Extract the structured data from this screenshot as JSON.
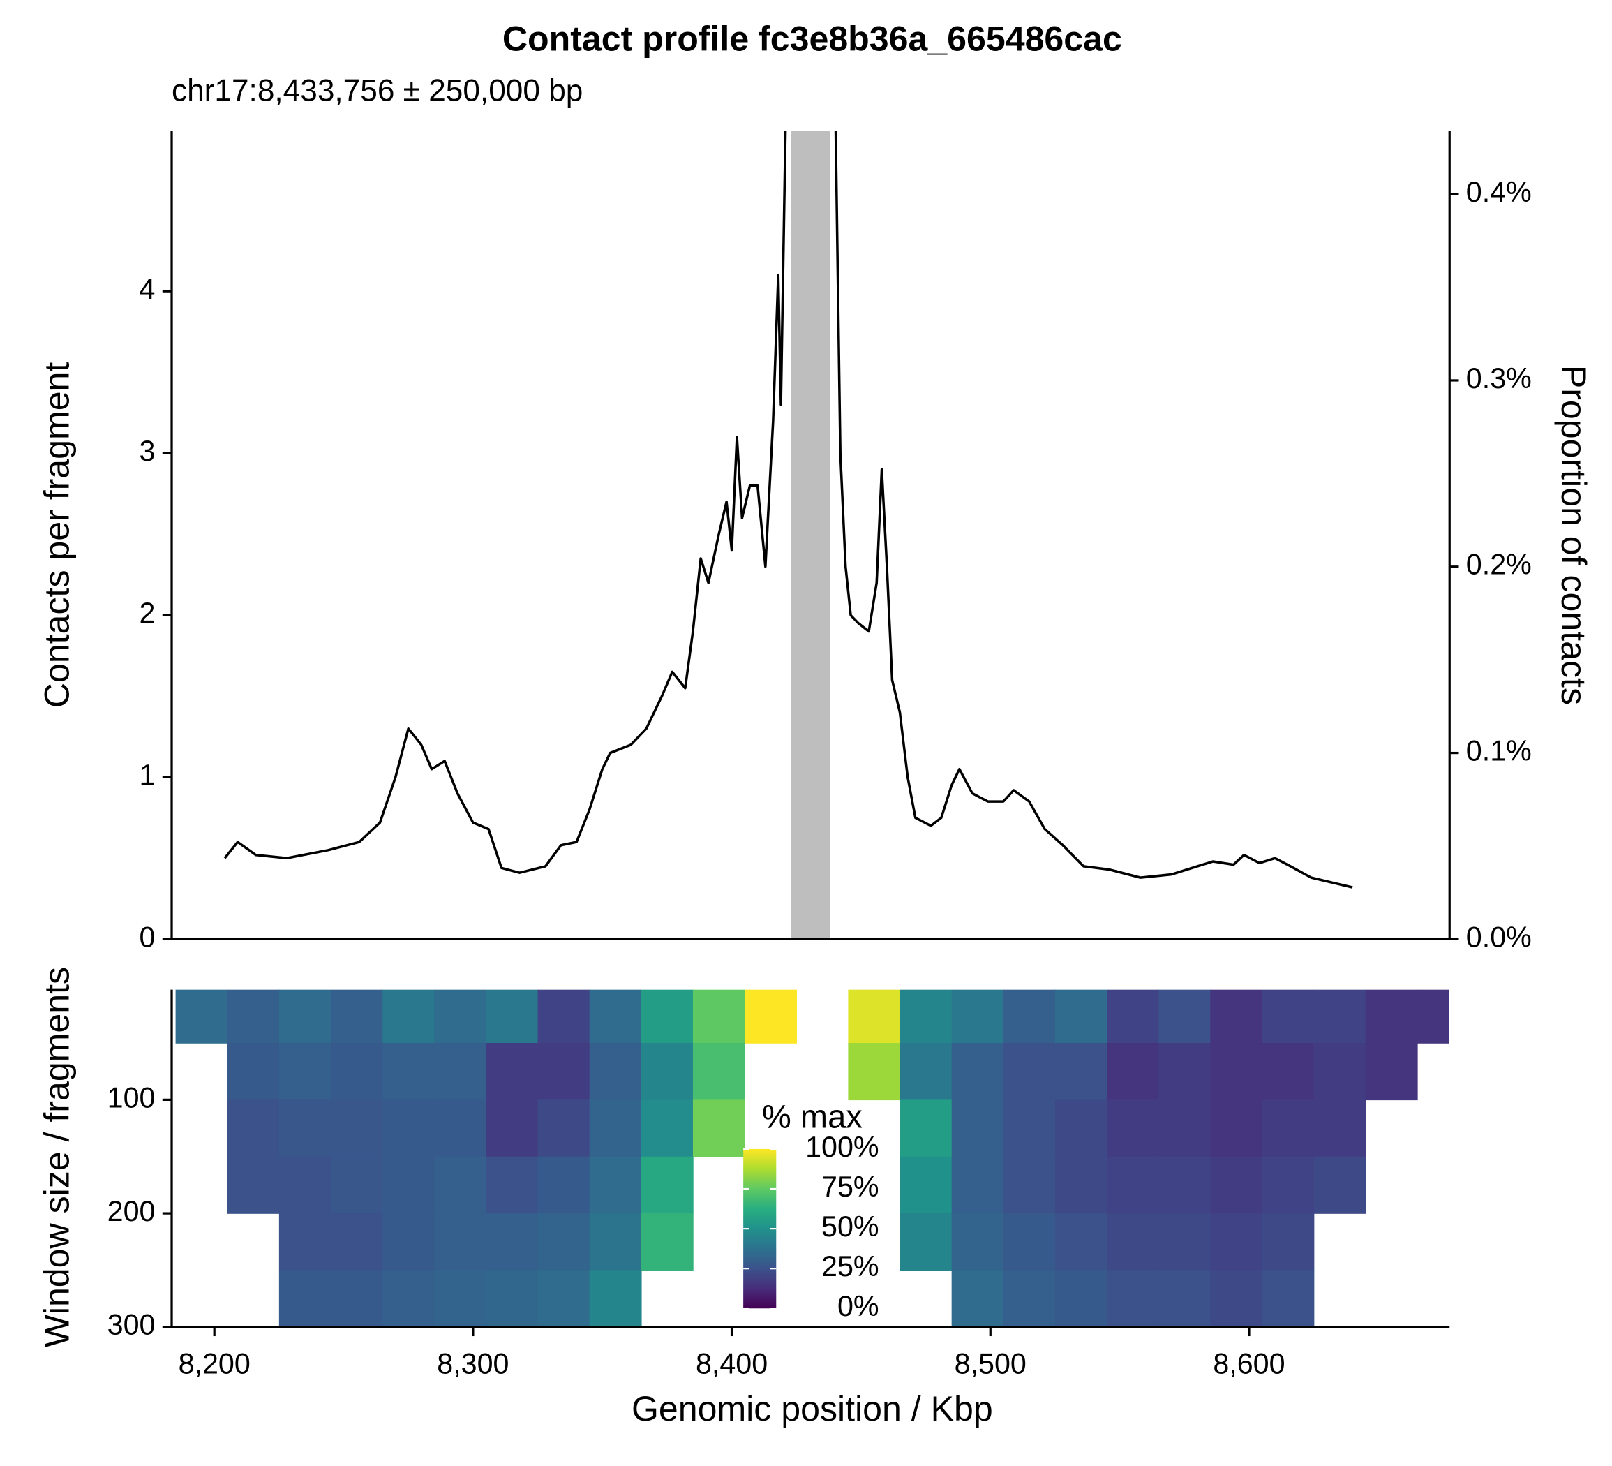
{
  "chart_data": [
    {
      "type": "line",
      "title": "Contact profile fc3e8b36a_665486cac",
      "subtitle": "chr17:8,433,756 ± 250,000 bp",
      "y_label": "Contacts per fragment",
      "y2_label": "Proportion of contacts",
      "color": "#000000",
      "highlight": [
        8423,
        8438
      ],
      "highlight_color": "#bebebe",
      "x": [
        8204,
        8209,
        8216,
        8228,
        8244,
        8256,
        8264,
        8270,
        8275,
        8280,
        8284,
        8289,
        8294,
        8300,
        8306,
        8311,
        8318,
        8328,
        8334,
        8340,
        8345,
        8350,
        8353,
        8361,
        8367,
        8373,
        8377,
        8382,
        8385,
        8388,
        8391,
        8395,
        8398,
        8400,
        8402,
        8404,
        8407,
        8410,
        8413,
        8416,
        8418,
        8419,
        8421,
        8430,
        8440,
        8442,
        8444,
        8446,
        8449,
        8453,
        8456,
        8458,
        8460,
        8462,
        8465,
        8468,
        8471,
        8477,
        8481,
        8485,
        8488,
        8493,
        8499,
        8505,
        8509,
        8515,
        8521,
        8528,
        8536,
        8546,
        8558,
        8570,
        8580,
        8586,
        8594,
        8598,
        8604,
        8610,
        8616,
        8624,
        8632,
        8640
      ],
      "values": [
        0.5,
        0.6,
        0.52,
        0.5,
        0.55,
        0.6,
        0.72,
        1.0,
        1.3,
        1.2,
        1.05,
        1.1,
        0.9,
        0.72,
        0.68,
        0.44,
        0.41,
        0.45,
        0.58,
        0.6,
        0.8,
        1.05,
        1.15,
        1.2,
        1.3,
        1.5,
        1.65,
        1.55,
        1.9,
        2.35,
        2.2,
        2.5,
        2.7,
        2.4,
        3.1,
        2.6,
        2.8,
        2.8,
        2.3,
        3.2,
        4.1,
        3.3,
        5.2,
        null,
        5.2,
        3.0,
        2.3,
        2.0,
        1.95,
        1.9,
        2.2,
        2.9,
        2.3,
        1.6,
        1.4,
        1.0,
        0.75,
        0.7,
        0.75,
        0.95,
        1.05,
        0.9,
        0.85,
        0.85,
        0.92,
        0.85,
        0.68,
        0.58,
        0.45,
        0.43,
        0.38,
        0.4,
        0.45,
        0.48,
        0.46,
        0.52,
        0.47,
        0.5,
        0.45,
        0.38,
        0.35,
        0.32
      ],
      "xlim": [
        8183.5,
        8677.5
      ],
      "ylim": [
        0,
        4.99
      ],
      "yticks": [
        0,
        1,
        2,
        3,
        4
      ],
      "y2lim": [
        0,
        0.434
      ],
      "y2ticks": [
        {
          "value": 0,
          "label": "0.0%"
        },
        {
          "value": 0.1,
          "label": "0.1%"
        },
        {
          "value": 0.2,
          "label": "0.2%"
        },
        {
          "value": 0.3,
          "label": "0.3%"
        },
        {
          "value": 0.4,
          "label": "0.4%"
        }
      ]
    },
    {
      "type": "heatmap",
      "x_label": "Genomic position / Kbp",
      "y_label": "Window size / fragments",
      "legend_title": "% max",
      "colors": [
        "#440154",
        "#472d7b",
        "#3b528b",
        "#2c728e",
        "#21918c",
        "#28ae80",
        "#5ec962",
        "#addc30",
        "#fde725"
      ],
      "legend_ticks": [
        {
          "value": 0,
          "label": "0%"
        },
        {
          "value": 25,
          "label": "25%"
        },
        {
          "value": 50,
          "label": "50%"
        },
        {
          "value": 75,
          "label": "75%"
        },
        {
          "value": 100,
          "label": "100%"
        }
      ],
      "x_bins": [
        8185,
        8205,
        8225,
        8245,
        8265,
        8285,
        8305,
        8325,
        8345,
        8365,
        8385,
        8405,
        8425,
        8445,
        8465,
        8485,
        8505,
        8525,
        8545,
        8565,
        8585,
        8605,
        8625,
        8645,
        8665,
        8677
      ],
      "y_bins": [
        3,
        50,
        100,
        150,
        200,
        250,
        300
      ],
      "values": [
        [
          35,
          30,
          35,
          30,
          40,
          35,
          40,
          20,
          35,
          55,
          75,
          100,
          null,
          95,
          45,
          40,
          30,
          35,
          20,
          25,
          15,
          20,
          20,
          15,
          15
        ],
        [
          null,
          28,
          30,
          28,
          30,
          30,
          18,
          18,
          30,
          45,
          70,
          null,
          null,
          85,
          40,
          30,
          25,
          25,
          15,
          18,
          15,
          15,
          18,
          15,
          null
        ],
        [
          null,
          25,
          27,
          27,
          28,
          28,
          18,
          22,
          32,
          48,
          78,
          null,
          null,
          null,
          55,
          30,
          25,
          22,
          18,
          18,
          15,
          18,
          18,
          null,
          null
        ],
        [
          null,
          25,
          25,
          27,
          28,
          30,
          25,
          28,
          35,
          60,
          null,
          null,
          null,
          null,
          50,
          30,
          25,
          22,
          20,
          20,
          18,
          20,
          22,
          null,
          null
        ],
        [
          null,
          null,
          25,
          25,
          28,
          30,
          30,
          32,
          38,
          65,
          null,
          null,
          null,
          null,
          45,
          32,
          28,
          25,
          22,
          22,
          20,
          22,
          null,
          null,
          null
        ],
        [
          null,
          null,
          28,
          28,
          30,
          32,
          33,
          35,
          45,
          null,
          null,
          null,
          null,
          null,
          null,
          35,
          30,
          28,
          25,
          25,
          22,
          25,
          null,
          null,
          null
        ]
      ],
      "xlim": [
        8183.5,
        8677.5
      ],
      "ylim": [
        3,
        300
      ],
      "xticks": [
        {
          "value": 8200,
          "label": "8,200"
        },
        {
          "value": 8300,
          "label": "8,300"
        },
        {
          "value": 8400,
          "label": "8,400"
        },
        {
          "value": 8500,
          "label": "8,500"
        },
        {
          "value": 8600,
          "label": "8,600"
        }
      ],
      "yticks": [
        100,
        200,
        300
      ]
    }
  ]
}
